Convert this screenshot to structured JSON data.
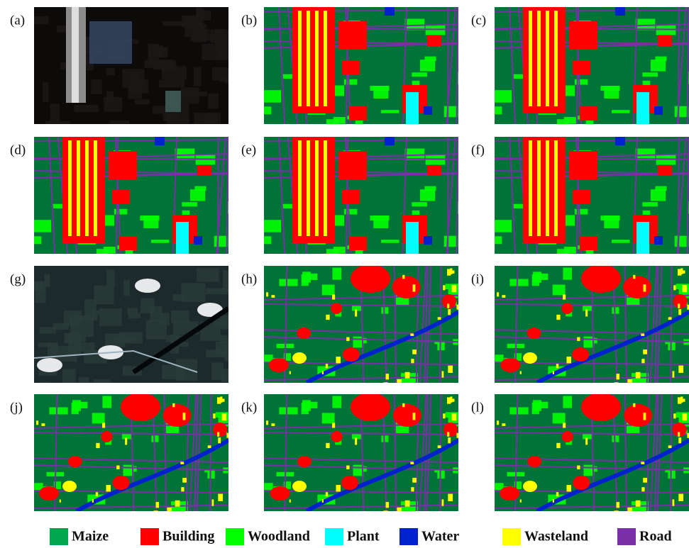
{
  "panels": [
    {
      "label": "(a)"
    },
    {
      "label": "(b)"
    },
    {
      "label": "(c)"
    },
    {
      "label": "(d)"
    },
    {
      "label": "(e)"
    },
    {
      "label": "(f)"
    },
    {
      "label": "(g)"
    },
    {
      "label": "(h)"
    },
    {
      "label": "(i)"
    },
    {
      "label": "(j)"
    },
    {
      "label": "(k)"
    },
    {
      "label": "(l)"
    }
  ],
  "legend": [
    {
      "name": "Maize",
      "color": "#00a650"
    },
    {
      "name": "Building",
      "color": "#ff0000"
    },
    {
      "name": "Woodland",
      "color": "#00ff00"
    },
    {
      "name": "Plant",
      "color": "#00ffff"
    },
    {
      "name": "Water",
      "color": "#0022cc"
    },
    {
      "name": "Wasteland",
      "color": "#ffff00"
    },
    {
      "name": "Road",
      "color": "#7a2fa8"
    }
  ]
}
